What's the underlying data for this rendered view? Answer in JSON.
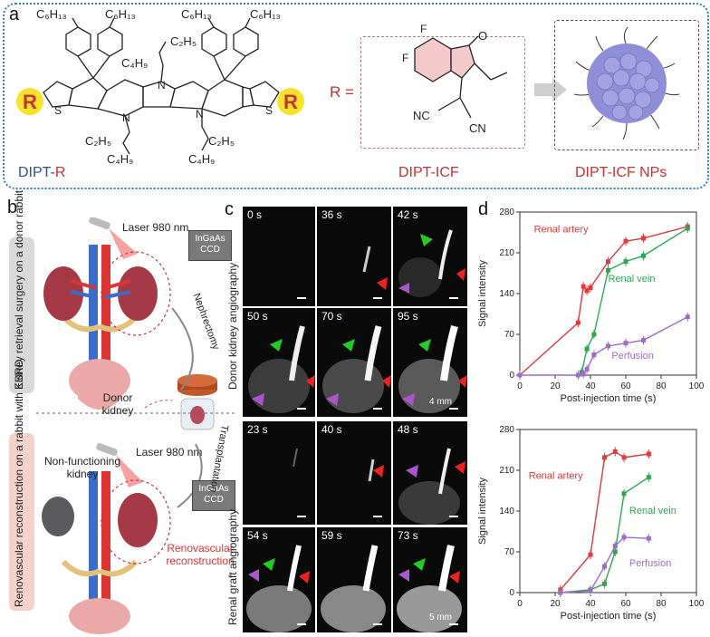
{
  "panel_a": {
    "letter": "a",
    "molecule_name_prefix": "DIPT-",
    "molecule_name_suffix": "R",
    "r_equals": "R =",
    "r_label": "R",
    "substituents": [
      "C₆H₁₃",
      "C₂H₅",
      "C₄H₉"
    ],
    "icf_label": "DIPT-ICF",
    "nps_label": "DIPT-ICF NPs",
    "colors": {
      "border": "#2f78c4",
      "red": "#c83232",
      "blue": "#2c4f9e",
      "np": "#8f8fd8"
    }
  },
  "panel_b": {
    "letter": "b",
    "laser_top": "Laser 980 nm",
    "laser_bottom": "Laser 980 nm",
    "detector": "InGaAs CCD",
    "side_top": "Kidney retrieval surgery on a donor rabbit",
    "side_bottom": "Renovascular reconstruction on a rabbit with ESRD",
    "nephrectomy": "Nephrectomy",
    "transplantation": "Transplantation",
    "donor_kidney": "Donor kidney",
    "non_functioning": "Non-functioning kidney",
    "renovascular": "Renovascular reconstruction"
  },
  "panel_c": {
    "letter": "c",
    "side_top": "Donor kidney angiography",
    "side_bottom": "Renal graft angiography",
    "times_top": [
      "0 s",
      "36 s",
      "42 s",
      "50 s",
      "70 s",
      "95 s"
    ],
    "times_bottom": [
      "23 s",
      "40 s",
      "48 s",
      "54 s",
      "59 s",
      "73 s"
    ],
    "scale_top": "4 mm",
    "scale_bottom": "5 mm"
  },
  "panel_d": {
    "letter": "d",
    "chart_data": [
      {
        "type": "line",
        "xlabel": "Post-injection time (s)",
        "ylabel": "Signal intensity",
        "xlim": [
          0,
          100
        ],
        "ylim": [
          0,
          280
        ],
        "xticks": [
          0,
          20,
          40,
          60,
          80,
          100
        ],
        "yticks": [
          0,
          70,
          140,
          210,
          280
        ],
        "series": [
          {
            "name": "Renal artery",
            "color": "#e03a3a",
            "x": [
              0,
              33,
              36,
              38,
              40,
              50,
              60,
              70,
              95
            ],
            "y": [
              0,
              90,
              152,
              145,
              150,
              195,
              230,
              235,
              255
            ]
          },
          {
            "name": "Renal vein",
            "color": "#2ea84f",
            "x": [
              35,
              38,
              42,
              50,
              60,
              70,
              95
            ],
            "y": [
              5,
              45,
              70,
              180,
              195,
              205,
              252
            ]
          },
          {
            "name": "Perfusion",
            "color": "#9e6cc6",
            "x": [
              0,
              33,
              36,
              38,
              42,
              50,
              60,
              70,
              95
            ],
            "y": [
              0,
              0,
              2,
              10,
              35,
              50,
              55,
              60,
              100
            ]
          }
        ]
      },
      {
        "type": "line",
        "xlabel": "Post-injection time (s)",
        "ylabel": "Signal intensity",
        "xlim": [
          0,
          100
        ],
        "ylim": [
          0,
          280
        ],
        "xticks": [
          0,
          20,
          40,
          60,
          80,
          100
        ],
        "yticks": [
          0,
          70,
          140,
          210,
          280
        ],
        "series": [
          {
            "name": "Renal artery",
            "color": "#e03a3a",
            "x": [
              23,
              40,
              48,
              54,
              59,
              73
            ],
            "y": [
              5,
              65,
              232,
              242,
              232,
              238
            ]
          },
          {
            "name": "Renal vein",
            "color": "#2ea84f",
            "x": [
              23,
              40,
              48,
              54,
              59,
              73
            ],
            "y": [
              0,
              5,
              15,
              70,
              170,
              198
            ]
          },
          {
            "name": "Perfusion",
            "color": "#9e6cc6",
            "x": [
              23,
              40,
              48,
              54,
              59,
              73
            ],
            "y": [
              0,
              3,
              45,
              80,
              95,
              93
            ]
          }
        ]
      }
    ]
  }
}
